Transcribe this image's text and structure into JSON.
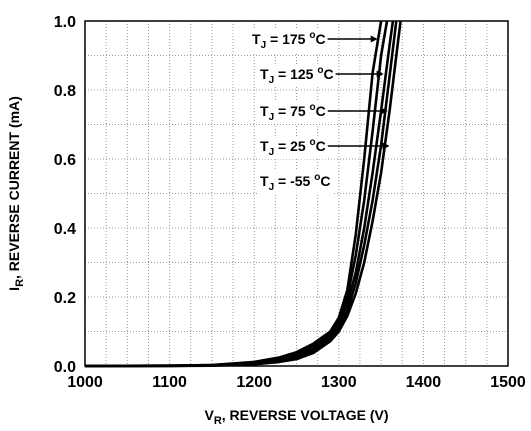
{
  "chart_data": {
    "type": "line",
    "xlabel": {
      "main": "V",
      "sub": "R",
      "rest": ", REVERSE VOLTAGE (V)"
    },
    "ylabel": {
      "main": "I",
      "sub": "R",
      "rest": ", REVERSE CURRENT (mA)"
    },
    "xlim": [
      1000,
      1500
    ],
    "ylim": [
      0,
      1.0
    ],
    "x_ticks": [
      "1000",
      "1100",
      "1200",
      "1300",
      "1400",
      "1500"
    ],
    "y_ticks": [
      "0.0",
      "0.2",
      "0.4",
      "0.6",
      "0.8",
      "1.0"
    ],
    "grid": "on",
    "legend_position": "top-right (inside)",
    "series": [
      {
        "name": "T_J = 175 °C",
        "label": {
          "t": "T",
          "sub": "J",
          "rest": " = 175 ",
          "deg": "o",
          "unit": "C"
        },
        "x": [
          1000,
          1100,
          1150,
          1200,
          1230,
          1250,
          1270,
          1290,
          1300,
          1310,
          1320,
          1330,
          1340,
          1350
        ],
        "y": [
          0.0,
          0.001,
          0.003,
          0.012,
          0.025,
          0.04,
          0.065,
          0.1,
          0.14,
          0.22,
          0.38,
          0.6,
          0.85,
          1.0
        ]
      },
      {
        "name": "T_J = 125 °C",
        "label": {
          "t": "T",
          "sub": "J",
          "rest": " = 125 ",
          "deg": "o",
          "unit": "C"
        },
        "x": [
          1000,
          1100,
          1150,
          1200,
          1230,
          1250,
          1270,
          1290,
          1300,
          1310,
          1320,
          1330,
          1340,
          1350,
          1357
        ],
        "y": [
          0.0,
          0.001,
          0.003,
          0.01,
          0.022,
          0.035,
          0.058,
          0.095,
          0.13,
          0.2,
          0.32,
          0.48,
          0.68,
          0.9,
          1.0
        ]
      },
      {
        "name": "T_J = 75 °C",
        "label": {
          "t": "T",
          "sub": "J",
          "rest": " = 75 ",
          "deg": "o",
          "unit": "C"
        },
        "x": [
          1000,
          1100,
          1150,
          1200,
          1230,
          1250,
          1270,
          1290,
          1300,
          1310,
          1320,
          1330,
          1340,
          1350,
          1360,
          1364
        ],
        "y": [
          0.0,
          0.001,
          0.002,
          0.008,
          0.018,
          0.03,
          0.05,
          0.088,
          0.12,
          0.18,
          0.27,
          0.4,
          0.56,
          0.74,
          0.93,
          1.0
        ]
      },
      {
        "name": "T_J = 25 °C",
        "label": {
          "t": "T",
          "sub": "J",
          "rest": " = 25 ",
          "deg": "o",
          "unit": "C"
        },
        "x": [
          1000,
          1100,
          1150,
          1200,
          1230,
          1250,
          1270,
          1290,
          1300,
          1310,
          1320,
          1330,
          1340,
          1350,
          1360,
          1368
        ],
        "y": [
          0.0,
          0.0,
          0.002,
          0.006,
          0.014,
          0.025,
          0.044,
          0.08,
          0.11,
          0.16,
          0.24,
          0.35,
          0.48,
          0.64,
          0.84,
          1.0
        ]
      },
      {
        "name": "T_J = -55 °C",
        "label": {
          "t": "T",
          "sub": "J",
          "rest": " = -55 ",
          "deg": "o",
          "unit": "C"
        },
        "x": [
          1000,
          1100,
          1150,
          1200,
          1230,
          1250,
          1270,
          1290,
          1300,
          1310,
          1320,
          1330,
          1340,
          1350,
          1360,
          1370,
          1373
        ],
        "y": [
          0.0,
          0.0,
          0.001,
          0.005,
          0.012,
          0.02,
          0.038,
          0.072,
          0.1,
          0.145,
          0.21,
          0.3,
          0.42,
          0.56,
          0.74,
          0.94,
          1.0
        ]
      }
    ],
    "label_arrows": [
      {
        "series": "T_J = 175 °C",
        "x": 1346
      },
      {
        "series": "T_J = 125 °C",
        "x": 1353
      },
      {
        "series": "T_J = 75 °C",
        "x": 1358
      },
      {
        "series": "T_J = 25 °C",
        "x": 1360
      },
      {
        "series": "T_J = -55 °C",
        "x": null
      }
    ],
    "colors": {
      "curve": "#000000",
      "grid": "#9a9a9a",
      "frame": "#000000"
    }
  }
}
